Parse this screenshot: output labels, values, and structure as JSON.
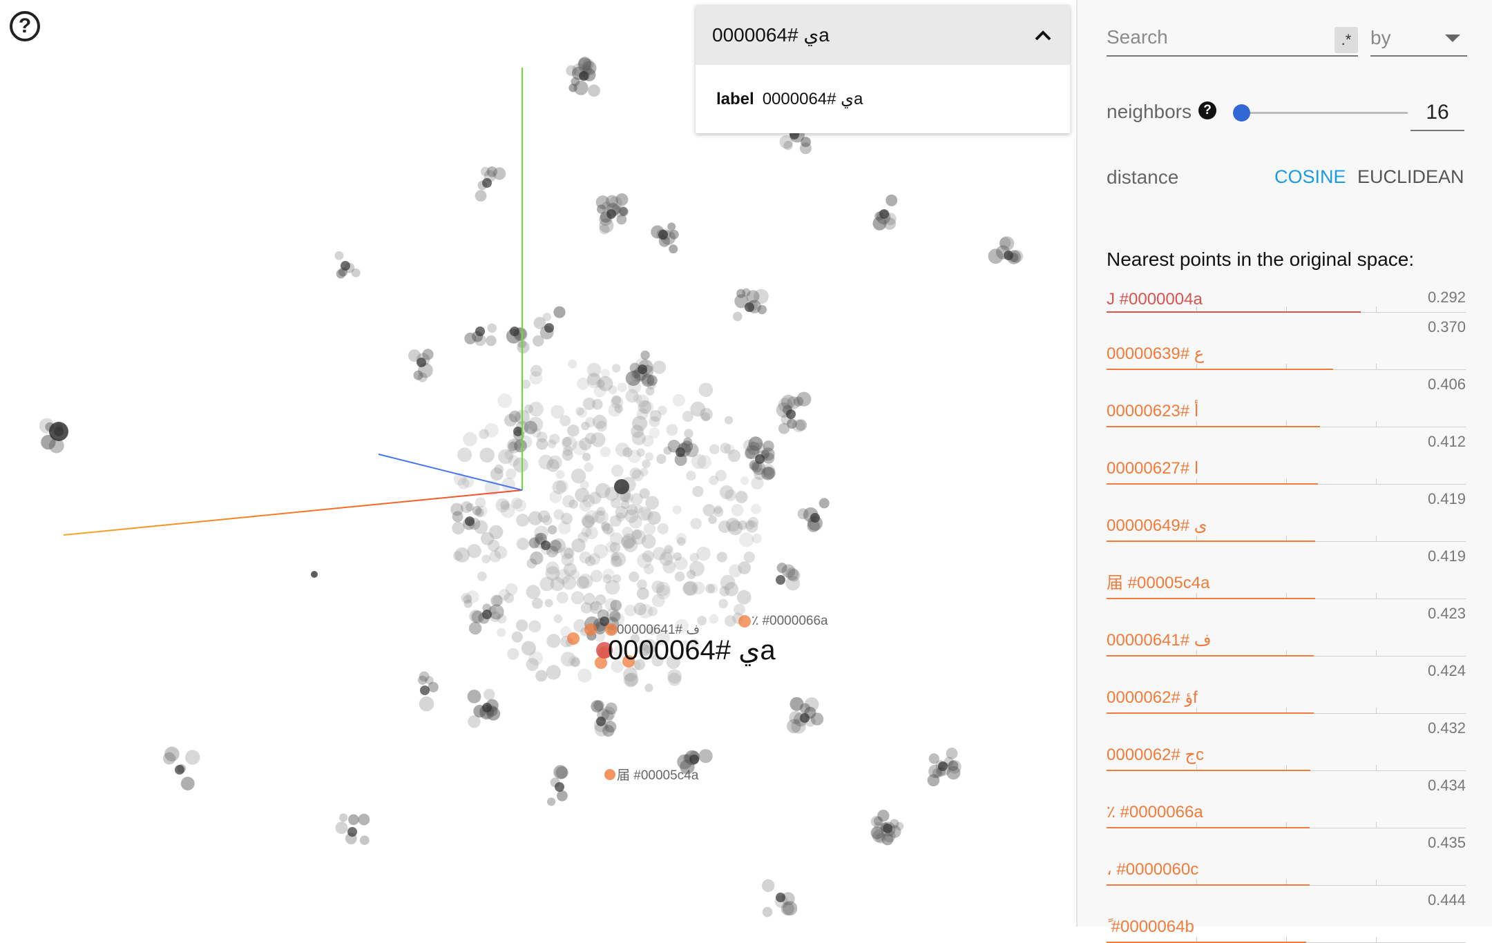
{
  "help_icon_glyph": "?",
  "inspector": {
    "title": "0000064# يa",
    "field_key": "label",
    "field_value": "0000064# يa"
  },
  "search": {
    "placeholder": "Search",
    "regex_label": ".*",
    "by_label": "by"
  },
  "neighbors": {
    "label": "neighbors",
    "help_glyph": "?",
    "value": "16",
    "slider_min": 1,
    "slider_max": 100,
    "slider_value": 16
  },
  "distance": {
    "label": "distance",
    "options": [
      "COSINE",
      "EUCLIDEAN"
    ],
    "selected": "COSINE"
  },
  "nearest": {
    "title": "Nearest points in the original space:",
    "items": [
      {
        "label": "J #0000004a",
        "value": "0.292",
        "distance": 0.292
      },
      {
        "label": "00000639# ع",
        "value": "0.370",
        "distance": 0.37
      },
      {
        "label": "00000623# أ",
        "value": "0.406",
        "distance": 0.406
      },
      {
        "label": "00000627# ا",
        "value": "0.412",
        "distance": 0.412
      },
      {
        "label": "00000649# ى",
        "value": "0.419",
        "distance": 0.419
      },
      {
        "label": "届 #00005c4a",
        "value": "0.419",
        "distance": 0.419
      },
      {
        "label": "00000641# ف",
        "value": "0.423",
        "distance": 0.423
      },
      {
        "label": "0000062# ؤf",
        "value": "0.424",
        "distance": 0.424
      },
      {
        "label": "0000062# جc",
        "value": "0.432",
        "distance": 0.432
      },
      {
        "label": "٪ #0000066a",
        "value": "0.434",
        "distance": 0.434
      },
      {
        "label": "، #0000060c",
        "value": "0.435",
        "distance": 0.435
      },
      {
        "label": "ً #0000064b",
        "value": "0.444",
        "distance": 0.444
      }
    ]
  },
  "scene_labels": {
    "selected": "0000064# يa",
    "n1": "00000641# ف",
    "n2": "٪ #0000066a",
    "n3": "届 #00005c4a"
  },
  "colors": {
    "accent": "#1a9be6",
    "slider": "#3367d6",
    "neighbor_near": "#d9534f",
    "neighbor_far": "#f07b3a",
    "point": "#333333",
    "axis_x": "#f04a2a",
    "axis_y": "#66dd33",
    "axis_z": "#4477ee"
  }
}
